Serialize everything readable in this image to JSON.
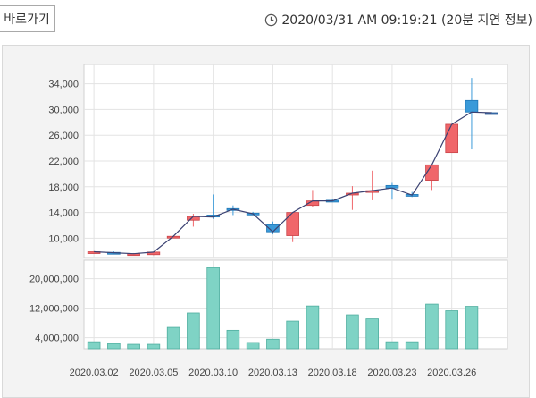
{
  "toolbar": {
    "shortcut_label": "바로가기"
  },
  "status": {
    "timestamp": "2020/03/31 AM 09:19:21 (20분 지연 정보)",
    "clock_icon": "clock-icon"
  },
  "colors": {
    "up": "#f0666a",
    "down": "#3a9ad9",
    "flat": "#3a6fb0",
    "volume": "#7fd3c5",
    "line": "#3b4272"
  },
  "chart_data": [
    {
      "type": "candlestick",
      "title": "",
      "ylim": [
        7000,
        37000
      ],
      "yticks": [
        10000,
        14000,
        18000,
        22000,
        26000,
        30000,
        34000
      ],
      "ytick_labels": [
        "10,000",
        "14,000",
        "18,000",
        "22,000",
        "26,000",
        "30,000",
        "34,000"
      ],
      "x_labels": [
        "2020.03.02",
        "2020.03.05",
        "2020.03.10",
        "2020.03.13",
        "2020.03.18",
        "2020.03.23",
        "2020.03.26"
      ],
      "x_label_index": [
        0,
        3,
        6,
        9,
        12,
        15,
        18
      ],
      "grid": true,
      "series": [
        {
          "open": 7750,
          "close": 7900,
          "high": 8000,
          "low": 7600
        },
        {
          "open": 7800,
          "close": 7750,
          "high": 7950,
          "low": 7650
        },
        {
          "open": 7550,
          "close": 7600,
          "high": 7700,
          "low": 7350
        },
        {
          "open": 7450,
          "close": 7850,
          "high": 7950,
          "low": 7350
        },
        {
          "open": 10200,
          "close": 10300,
          "high": 10400,
          "low": 10100
        },
        {
          "open": 12800,
          "close": 13400,
          "high": 13800,
          "low": 11800
        },
        {
          "open": 13600,
          "close": 13300,
          "high": 16800,
          "low": 13000
        },
        {
          "open": 14600,
          "close": 14500,
          "high": 15100,
          "low": 13600
        },
        {
          "open": 13900,
          "close": 13800,
          "high": 14100,
          "low": 13600
        },
        {
          "open": 12100,
          "close": 11000,
          "high": 12600,
          "low": 10600
        },
        {
          "open": 10400,
          "close": 14000,
          "high": 14100,
          "low": 9400
        },
        {
          "open": 15100,
          "close": 15800,
          "high": 17500,
          "low": 14800
        },
        {
          "open": 15900,
          "close": 15800,
          "high": 16100,
          "low": 15700
        },
        {
          "open": 16800,
          "close": 17000,
          "high": 18100,
          "low": 14400
        },
        {
          "open": 17300,
          "close": 17400,
          "high": 20500,
          "low": 15900
        },
        {
          "open": 18200,
          "close": 17800,
          "high": 18600,
          "low": 16000
        },
        {
          "open": 16800,
          "close": 16700,
          "high": 17200,
          "low": 16400
        },
        {
          "open": 19000,
          "close": 21400,
          "high": 21400,
          "low": 17500
        },
        {
          "open": 23300,
          "close": 27700,
          "high": 27700,
          "low": 23300
        },
        {
          "open": 31400,
          "close": 29600,
          "high": 34900,
          "low": 23800
        },
        {
          "open": 29500,
          "close": 29500,
          "high": 29600,
          "low": 29300
        }
      ],
      "close_line": [
        7900,
        7750,
        7600,
        7850,
        10300,
        13400,
        13300,
        14500,
        13800,
        11000,
        14000,
        15800,
        15800,
        17000,
        17400,
        17800,
        16700,
        21400,
        27700,
        29600,
        29500
      ]
    },
    {
      "type": "bar",
      "title": "",
      "ylim": [
        1000000,
        25000000
      ],
      "yticks": [
        4000000,
        12000000,
        20000000
      ],
      "ytick_labels": [
        "4,000,000",
        "12,000,000",
        "20,000,000"
      ],
      "grid": true,
      "values": [
        2900000,
        2400000,
        2200000,
        2200000,
        6800000,
        10700000,
        23000000,
        6000000,
        2700000,
        3600000,
        8500000,
        12600000,
        0,
        10200000,
        9100000,
        2900000,
        2900000,
        13100000,
        11300000,
        12500000,
        0
      ]
    }
  ]
}
